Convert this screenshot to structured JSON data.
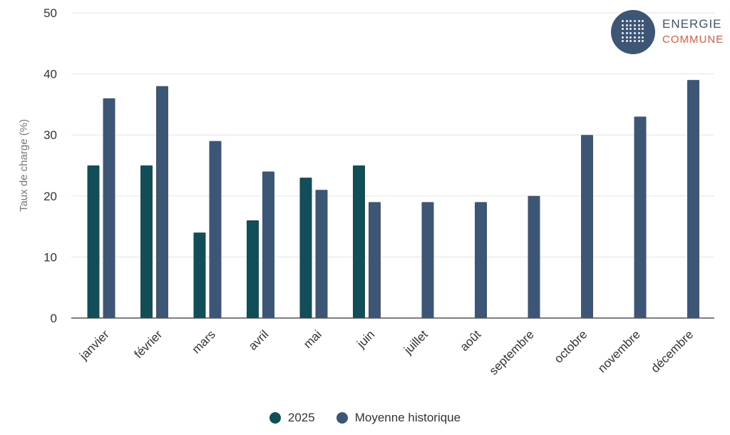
{
  "logo": {
    "line1": "ENERGIE",
    "line2": "COMMUNE"
  },
  "chart_data": {
    "type": "bar",
    "ylabel": "Taux de charge (%)",
    "ylim": [
      0,
      50
    ],
    "yticks": [
      0,
      10,
      20,
      30,
      40,
      50
    ],
    "grid": true,
    "legend_placement": "bottom",
    "categories": [
      "janvier",
      "février",
      "mars",
      "avril",
      "mai",
      "juin",
      "juillet",
      "août",
      "septembre",
      "octobre",
      "novembre",
      "décembre"
    ],
    "series": [
      {
        "name": "2025",
        "color": "#124e57",
        "values": [
          25,
          25,
          14,
          16,
          23,
          25,
          null,
          null,
          null,
          null,
          null,
          null
        ]
      },
      {
        "name": "Moyenne historique",
        "color": "#3d5676",
        "values": [
          36,
          38,
          29,
          24,
          21,
          19,
          19,
          19,
          20,
          30,
          33,
          39
        ]
      }
    ]
  }
}
